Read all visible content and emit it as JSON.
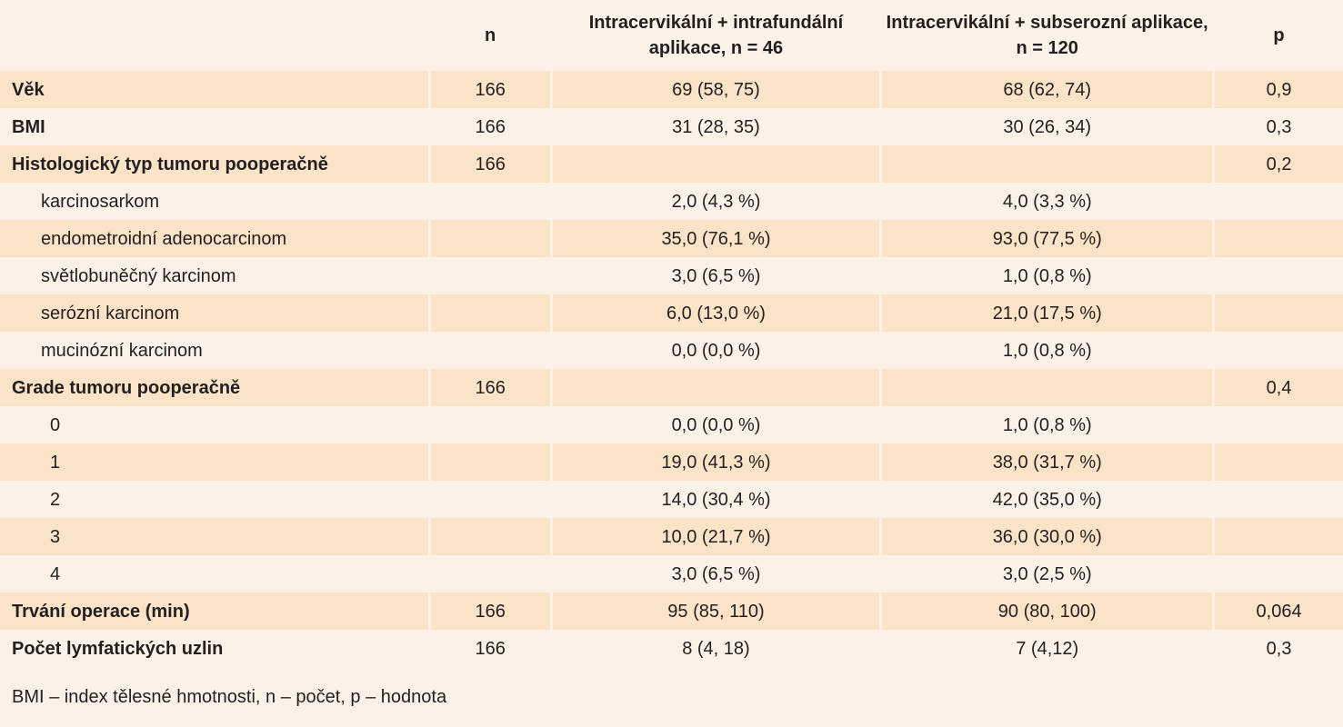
{
  "header": {
    "label": "",
    "n": "n",
    "group1": "Intracervikální + intrafundální aplikace, n = 46",
    "group2": "Intracervikální + subserozní aplikace, n = 120",
    "p": "p"
  },
  "rows": [
    {
      "label": "Věk",
      "n": "166",
      "g1": "69 (58, 75)",
      "g2": "68 (62, 74)",
      "p": "0,9"
    },
    {
      "label": "BMI",
      "n": "166",
      "g1": "31 (28, 35)",
      "g2": "30 (26, 34)",
      "p": "0,3"
    },
    {
      "label": "Histologický typ tumoru pooperačně",
      "n": "166",
      "g1": "",
      "g2": "",
      "p": "0,2"
    },
    {
      "label": "karcinosarkom",
      "n": "",
      "g1": "2,0 (4,3 %)",
      "g2": "4,0 (3,3 %)",
      "p": ""
    },
    {
      "label": "endometroidní adenocarcinom",
      "n": "",
      "g1": "35,0 (76,1 %)",
      "g2": "93,0 (77,5 %)",
      "p": ""
    },
    {
      "label": "světlobuněčný karcinom",
      "n": "",
      "g1": "3,0 (6,5 %)",
      "g2": "1,0 (0,8 %)",
      "p": ""
    },
    {
      "label": "serózní karcinom",
      "n": "",
      "g1": "6,0 (13,0 %)",
      "g2": "21,0 (17,5 %)",
      "p": ""
    },
    {
      "label": "mucinózní karcinom",
      "n": "",
      "g1": "0,0 (0,0 %)",
      "g2": "1,0 (0,8 %)",
      "p": ""
    },
    {
      "label": "Grade tumoru pooperačně",
      "n": "166",
      "g1": "",
      "g2": "",
      "p": "0,4"
    },
    {
      "label": "0",
      "n": "",
      "g1": "0,0 (0,0 %)",
      "g2": "1,0 (0,8 %)",
      "p": ""
    },
    {
      "label": "1",
      "n": "",
      "g1": "19,0 (41,3 %)",
      "g2": "38,0 (31,7 %)",
      "p": ""
    },
    {
      "label": "2",
      "n": "",
      "g1": "14,0 (30,4 %)",
      "g2": "42,0 (35,0 %)",
      "p": ""
    },
    {
      "label": "3",
      "n": "",
      "g1": "10,0 (21,7 %)",
      "g2": "36,0 (30,0 %)",
      "p": ""
    },
    {
      "label": "4",
      "n": "",
      "g1": "3,0 (6,5 %)",
      "g2": "3,0 (2,5 %)",
      "p": ""
    },
    {
      "label": "Trvání operace (min)",
      "n": "166",
      "g1": "95 (85, 110)",
      "g2": "90 (80, 100)",
      "p": "0,064"
    },
    {
      "label": "Počet lymfatických uzlin",
      "n": "166",
      "g1": "8 (4, 18)",
      "g2": "7 (4,12)",
      "p": "0,3"
    }
  ],
  "footnote": "BMI – index tělesné hmotnosti, n – počet, p – hodnota"
}
